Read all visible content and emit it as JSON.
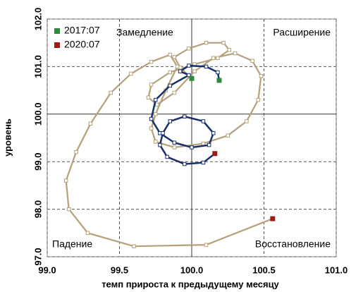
{
  "chart_data": {
    "type": "line",
    "xlabel": "темп прироста к предыдущему месяцу",
    "ylabel": "уровень",
    "xlim": [
      99.0,
      101.0
    ],
    "xticks": [
      {
        "value": 99.0,
        "label": "99.0"
      },
      {
        "value": 99.5,
        "label": "99.5"
      },
      {
        "value": 100.0,
        "label": "100.0"
      },
      {
        "value": 100.5,
        "label": "100.5"
      },
      {
        "value": 101.0,
        "label": "101.0"
      }
    ],
    "ylim": [
      97.0,
      102.0
    ],
    "yticks": [
      {
        "value": 97.0,
        "label": "97.0"
      },
      {
        "value": 98.0,
        "label": "98.0"
      },
      {
        "value": 99.0,
        "label": "99.0"
      },
      {
        "value": 100.0,
        "label": "100.0"
      },
      {
        "value": 101.0,
        "label": "101.0"
      },
      {
        "value": 102.0,
        "label": "102.0"
      }
    ],
    "grid": true,
    "axis_cross": {
      "x": 100.0,
      "y": 100.0
    },
    "legend": "upper left",
    "annotations": [
      {
        "text": "Замедление",
        "corner": "upper left"
      },
      {
        "text": "Расширение",
        "corner": "upper right"
      },
      {
        "text": "Падение",
        "corner": "lower left"
      },
      {
        "text": "Восстановление",
        "corner": "lower right"
      }
    ],
    "series": [
      {
        "color": "#b5a07a",
        "x": [
          100.0,
          99.92,
          99.88,
          99.98,
          100.1,
          100.22,
          100.26,
          100.18,
          100.02,
          99.85,
          99.72,
          99.7,
          99.76,
          99.88,
          100.02,
          100.15,
          100.3,
          100.42,
          100.48,
          100.46,
          100.38,
          100.25,
          100.08,
          99.88,
          99.75,
          99.72,
          99.75,
          99.82,
          99.9,
          99.85,
          99.72,
          99.58,
          99.44,
          99.3,
          99.2,
          99.13,
          99.15,
          99.28,
          99.6,
          100.1,
          100.56
        ],
        "values": [
          100.75,
          100.98,
          101.2,
          101.38,
          101.5,
          101.5,
          101.35,
          101.18,
          101.05,
          100.88,
          100.62,
          100.35,
          100.2,
          100.45,
          100.9,
          101.18,
          101.28,
          101.12,
          100.8,
          100.3,
          99.85,
          99.55,
          99.38,
          99.3,
          99.42,
          99.7,
          100.0,
          100.5,
          101.0,
          101.25,
          101.1,
          100.85,
          100.45,
          99.8,
          99.2,
          98.6,
          98.0,
          97.5,
          97.22,
          97.25,
          97.8
        ]
      },
      {
        "color": "#17306b",
        "x": [
          100.19,
          100.18,
          100.1,
          99.98,
          99.92,
          99.98,
          99.85,
          99.75,
          99.72,
          99.78,
          99.88,
          100.0,
          100.12,
          100.15,
          100.08,
          99.95,
          99.85,
          99.8,
          99.78,
          99.83,
          99.95,
          100.08,
          100.16
        ],
        "values": [
          100.71,
          100.88,
          101.0,
          101.02,
          100.9,
          100.82,
          100.6,
          100.3,
          99.9,
          99.6,
          99.4,
          99.3,
          99.35,
          99.6,
          99.85,
          99.95,
          99.85,
          99.6,
          99.35,
          99.1,
          98.95,
          98.98,
          99.17
        ]
      },
      {
        "name": "2017:07",
        "color": "#2e8b3e",
        "marker_only": true,
        "x": [
          100.0,
          100.19
        ],
        "values": [
          100.75,
          100.71
        ]
      },
      {
        "name": "2020:07",
        "color": "#a01a1a",
        "marker_only": true,
        "x": [
          100.56,
          100.16
        ],
        "values": [
          97.8,
          99.17
        ]
      }
    ]
  }
}
